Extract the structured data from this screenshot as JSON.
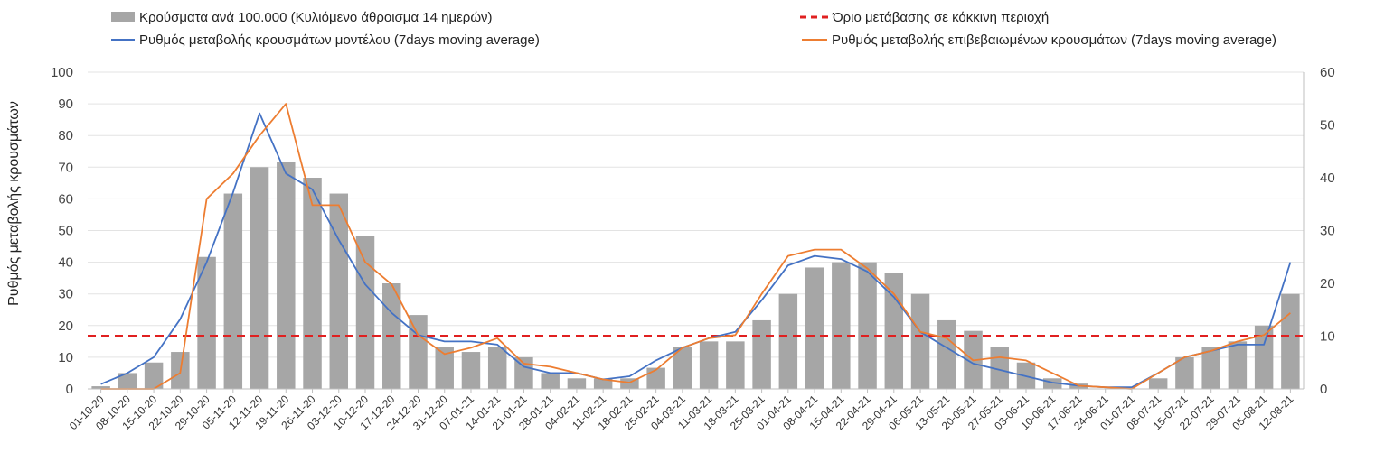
{
  "chart_data": {
    "type": "bar",
    "ylabel": "Ρυθμός μεταβολής κρουσμάτων",
    "ylim": [
      0,
      100
    ],
    "y2lim": [
      0,
      60
    ],
    "yticks": [
      "0",
      "10",
      "20",
      "30",
      "40",
      "50",
      "60",
      "70",
      "80",
      "90",
      "100"
    ],
    "y2ticks": [
      "0",
      "10",
      "20",
      "30",
      "40",
      "50",
      "60"
    ],
    "grid": true,
    "legend_position": "top",
    "x_tick_labels": [
      "01-10-20",
      "08-10-20",
      "15-10-20",
      "22-10-20",
      "29-10-20",
      "05-11-20",
      "12-11-20",
      "19-11-20",
      "26-11-20",
      "03-12-20",
      "10-12-20",
      "17-12-20",
      "24-12-20",
      "31-12-20",
      "07-01-21",
      "14-01-21",
      "21-01-21",
      "28-01-21",
      "04-02-21",
      "11-02-21",
      "18-02-21",
      "25-02-21",
      "04-03-21",
      "11-03-21",
      "18-03-21",
      "25-03-21",
      "01-04-21",
      "08-04-21",
      "15-04-21",
      "22-04-21",
      "29-04-21",
      "06-05-21",
      "13-05-21",
      "20-05-21",
      "27-05-21",
      "03-06-21",
      "10-06-21",
      "17-06-21",
      "24-06-21",
      "01-07-21",
      "08-07-21",
      "15-07-21",
      "22-07-21",
      "29-07-21",
      "05-08-21",
      "12-08-21"
    ],
    "threshold": {
      "name": "Όριο μετάβασης σε κόκκινη περιοχή",
      "value": 10,
      "axis": "right",
      "color": "#e02020"
    },
    "series": [
      {
        "name": "Κρούσματα ανά 100.000 (Κυλιόμενο άθροισμα 14 ημερών)",
        "kind": "bar",
        "axis": "right",
        "color": "#a6a6a6",
        "values": [
          0.5,
          3,
          5,
          7,
          25,
          37,
          42,
          43,
          40,
          37,
          29,
          20,
          14,
          8,
          7,
          8,
          6,
          3,
          2,
          2,
          2,
          4,
          8,
          9,
          9,
          13,
          18,
          23,
          24,
          24,
          22,
          18,
          13,
          11,
          8,
          5,
          2,
          1,
          0,
          0,
          2,
          6,
          8,
          9,
          12,
          18
        ]
      },
      {
        "name": "Ρυθμός μεταβολής κρουσμάτων μοντέλου (7days moving average)",
        "kind": "line",
        "axis": "left",
        "color": "#4472c4",
        "values": [
          1.5,
          5,
          10,
          22,
          40,
          62,
          87,
          68,
          63,
          47,
          33,
          24,
          17,
          15,
          15,
          14,
          7,
          5,
          5,
          3,
          4,
          9,
          13,
          16,
          18,
          28,
          39,
          42,
          41,
          37,
          29,
          18,
          13,
          8,
          6,
          4,
          2,
          1,
          0.5,
          0.5,
          5,
          10,
          12,
          14,
          14,
          40
        ]
      },
      {
        "name": "Ρυθμός μεταβολής επιβεβαιωμένων κρουσμάτων (7days moving average)",
        "kind": "line",
        "axis": "left",
        "color": "#ed7d31",
        "values": [
          0,
          0,
          0,
          5,
          60,
          68,
          80,
          90,
          58,
          58,
          40,
          33,
          17,
          11,
          13,
          16,
          8,
          7,
          5,
          3,
          2,
          6,
          13,
          16,
          17,
          30,
          42,
          44,
          44,
          38,
          30,
          18,
          16,
          9,
          10,
          9,
          5,
          1,
          0.5,
          0,
          5,
          10,
          12,
          15,
          17,
          24
        ]
      }
    ]
  }
}
